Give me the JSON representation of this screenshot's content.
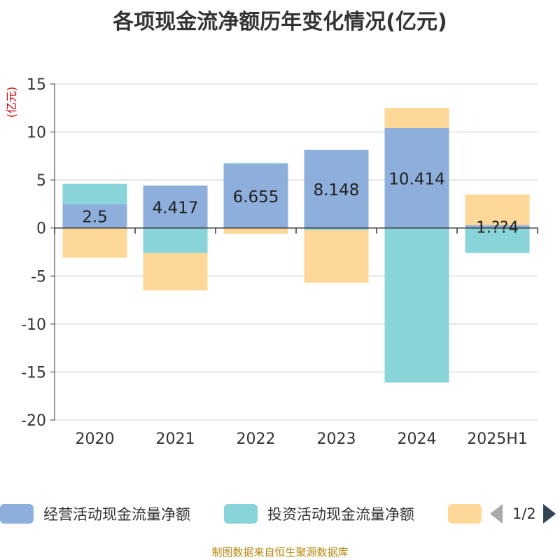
{
  "title": "各项现金流净额历年变化情况(亿元)",
  "source_note": "制图数据来自恒生聚源数据库",
  "legend": {
    "pager_text": "1/2"
  },
  "colors": {
    "operating": "#8eaedb",
    "investing": "#88d4d8",
    "financing": "#fdd899",
    "grid": "#cccccc",
    "axis": "#333333",
    "ylabel": "#cc0000"
  },
  "chart_data": {
    "type": "bar",
    "stacked": true,
    "categories": [
      "2020",
      "2021",
      "2022",
      "2023",
      "2024",
      "2025H1"
    ],
    "ylabel": "(亿元)",
    "ylim": [
      -20,
      15
    ],
    "yticks": [
      15,
      10,
      5,
      0,
      -5,
      -10,
      -15,
      -20
    ],
    "grid": true,
    "legend_position": "bottom",
    "series": [
      {
        "name": "经营活动现金流量净额",
        "values": [
          2.5,
          4.417,
          6.655,
          8.148,
          10.414,
          0.3
        ],
        "labels": [
          "2.5",
          "4.417",
          "6.655",
          "8.148",
          "10.414",
          "1.??4"
        ]
      },
      {
        "name": "投资活动现金流量净额",
        "values": [
          2.1,
          -2.6,
          0.1,
          -0.2,
          -16.1,
          -2.6
        ]
      },
      {
        "name": "",
        "values": [
          -3.1,
          -3.9,
          -0.6,
          -5.5,
          2.1,
          3.2
        ]
      }
    ]
  }
}
